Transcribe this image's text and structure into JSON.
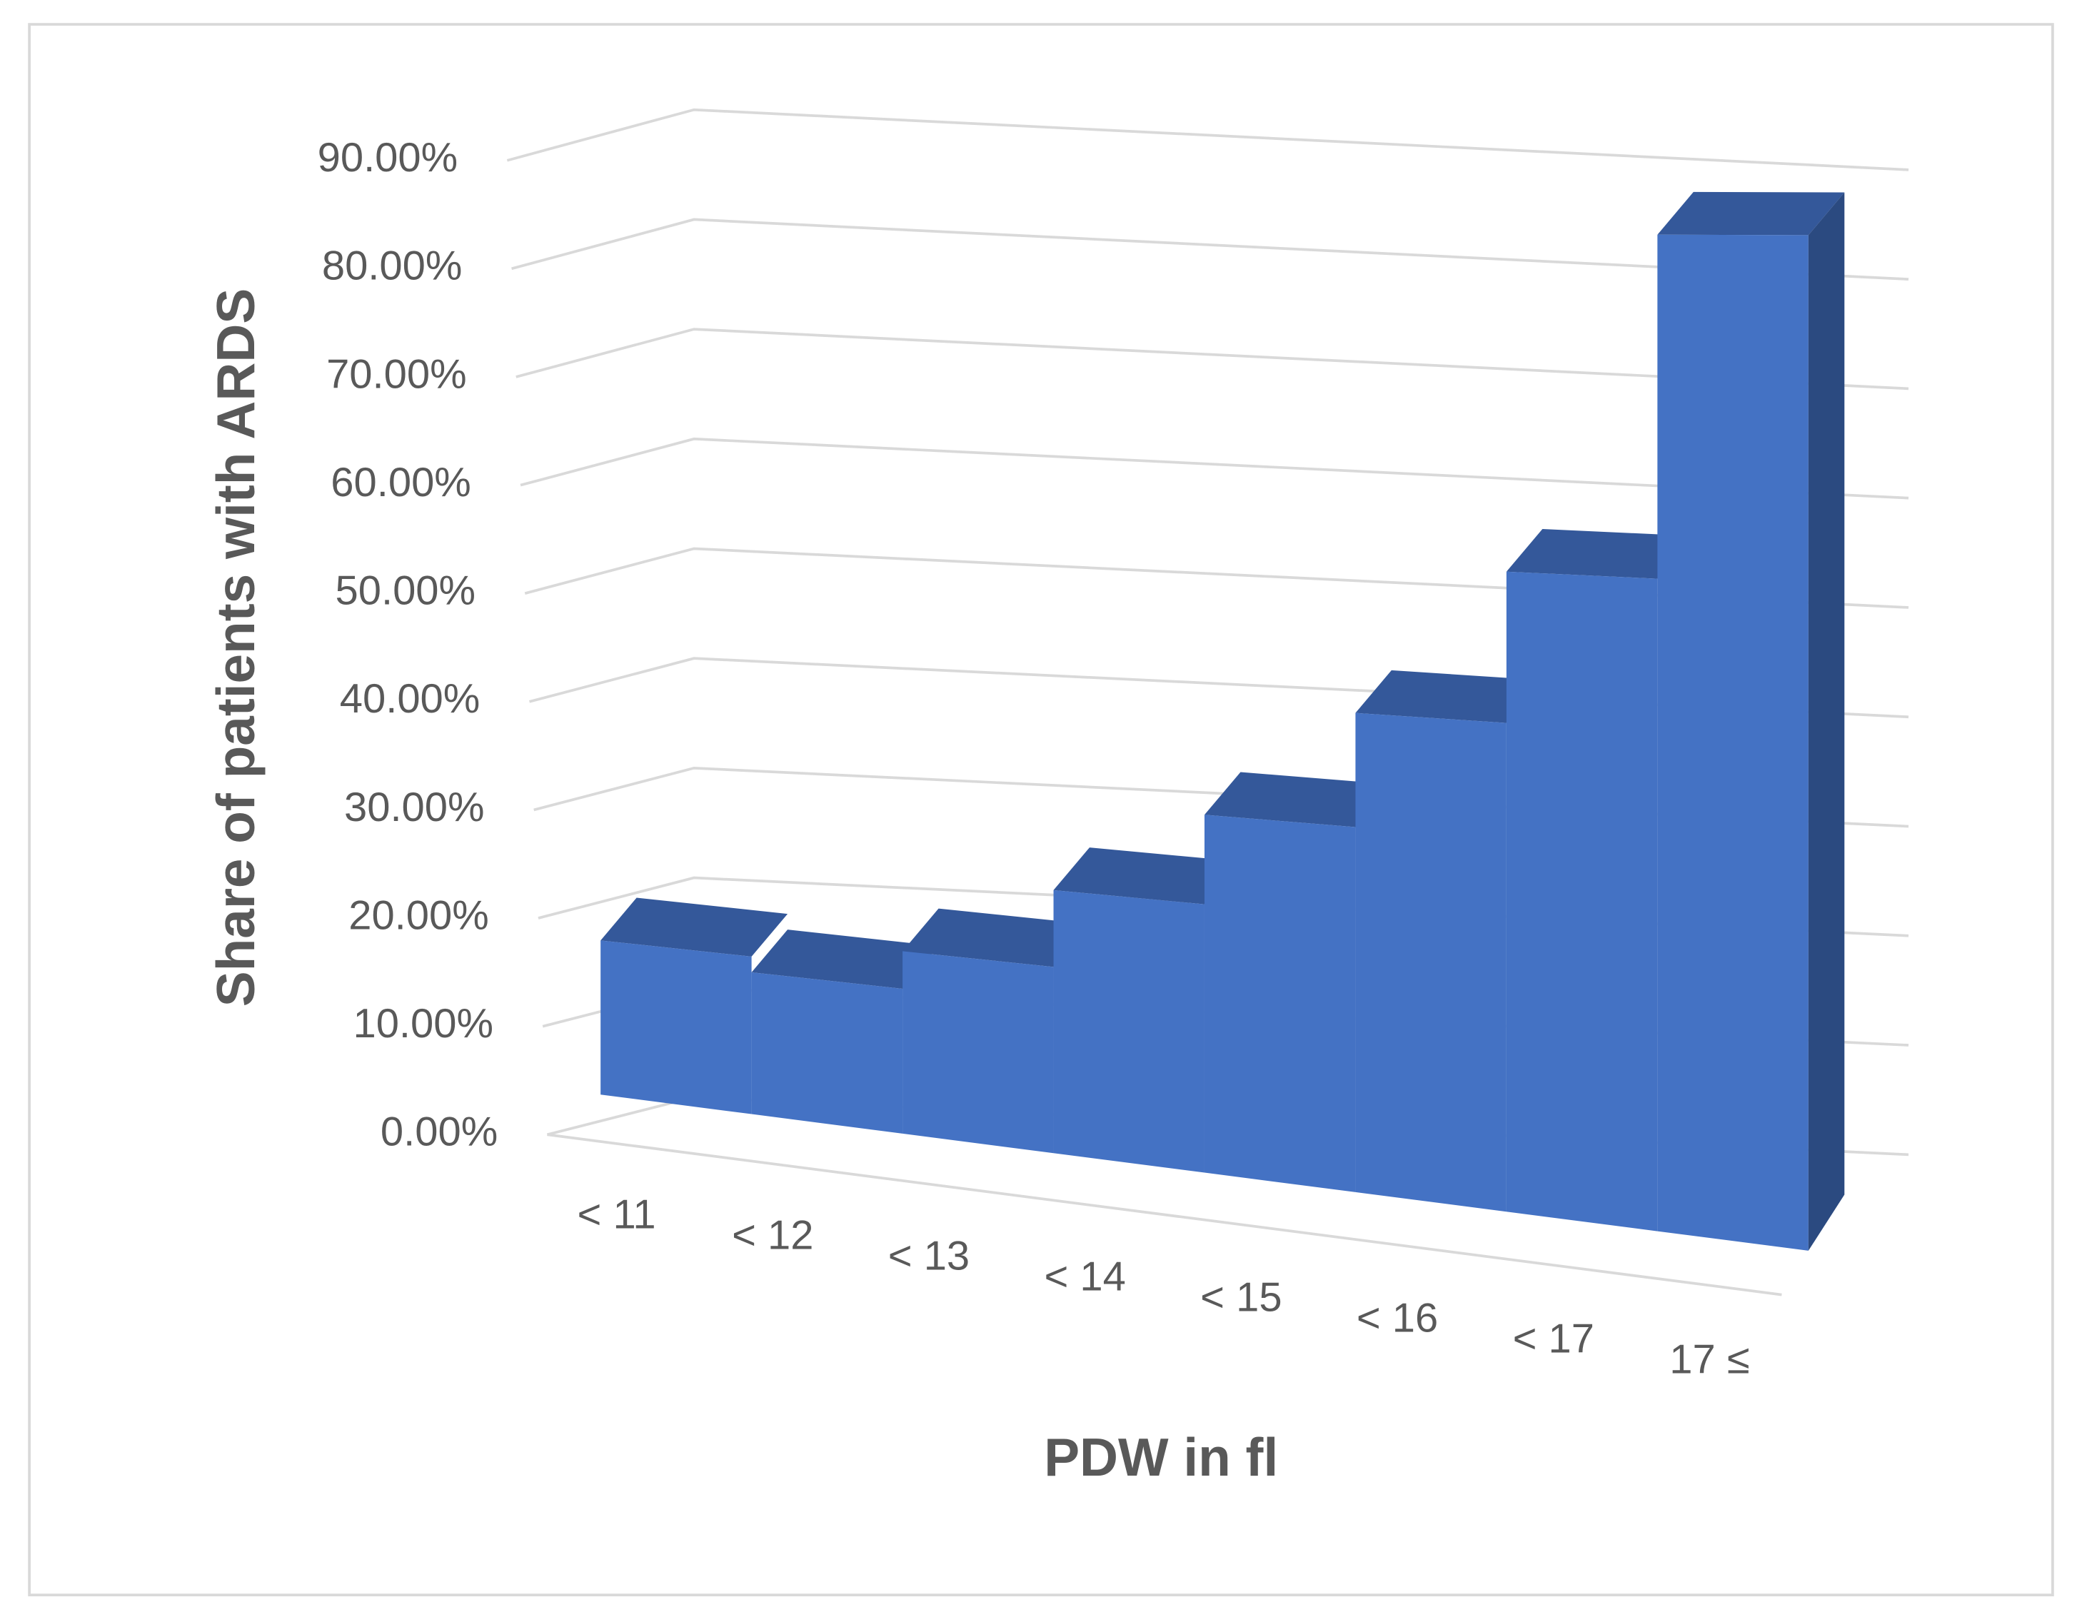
{
  "chart_data": {
    "type": "area3d",
    "x_label": "PDW in fl",
    "y_label": "Share of patients with ARDS",
    "categories": [
      "< 11",
      "< 12",
      "< 13",
      "< 14",
      "< 15",
      "< 16",
      "< 17",
      "17 ≤"
    ],
    "values": [
      15,
      13.5,
      17,
      24,
      32,
      42,
      55,
      84
    ],
    "color": "#4472c4",
    "ylim": [
      0,
      90
    ],
    "yticks": [
      {
        "value": 0,
        "label": "0.00%"
      },
      {
        "value": 10,
        "label": "10.00%"
      },
      {
        "value": 20,
        "label": "20.00%"
      },
      {
        "value": 30,
        "label": "30.00%"
      },
      {
        "value": 40,
        "label": "40.00%"
      },
      {
        "value": 50,
        "label": "50.00%"
      },
      {
        "value": 60,
        "label": "60.00%"
      },
      {
        "value": 70,
        "label": "70.00%"
      },
      {
        "value": 80,
        "label": "80.00%"
      },
      {
        "value": 90,
        "label": "90.00%"
      }
    ],
    "grid": true
  }
}
